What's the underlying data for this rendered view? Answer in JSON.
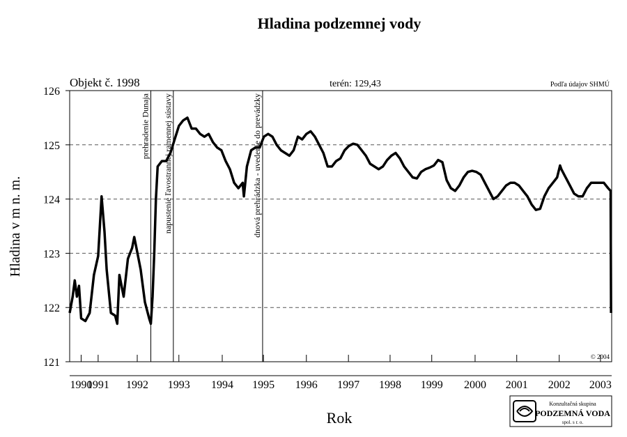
{
  "chart_data": {
    "type": "line",
    "title": "Hladina podzemnej vody",
    "xlabel": "Rok",
    "ylabel": "Hladina v m n. m.",
    "annotations": {
      "object": "Objekt č. 1998",
      "terrain": "terén: 129,43",
      "source": "Podľa údajov SHMÚ",
      "copyright": "© 2004"
    },
    "events": [
      {
        "x": 1992.84,
        "label": "prehradenie Dunaja"
      },
      {
        "x": 1993.37,
        "label": "napustenie ľavostrannej ramennej sústavy"
      },
      {
        "x": 1995.47,
        "label": "dnová prehrádzka - uvedenie do prevádzky"
      }
    ],
    "xlim": [
      1990.93,
      2003.684
    ],
    "ylim": [
      121,
      126
    ],
    "yticks": [
      121,
      122,
      123,
      124,
      125,
      126
    ],
    "xticks": [
      {
        "value": 1991.2,
        "label": "1990"
      },
      {
        "value": 1991.6,
        "label": "1991"
      },
      {
        "value": 1992.52,
        "label": "1992"
      },
      {
        "value": 1993.5,
        "label": "1993"
      },
      {
        "value": 1994.52,
        "label": "1994"
      },
      {
        "value": 1995.49,
        "label": "1995"
      },
      {
        "value": 1996.5,
        "label": "1996"
      },
      {
        "value": 1997.49,
        "label": "1997"
      },
      {
        "value": 1998.47,
        "label": "1998"
      },
      {
        "value": 1999.45,
        "label": "1999"
      },
      {
        "value": 2000.47,
        "label": "2000"
      },
      {
        "value": 2001.45,
        "label": "2001"
      },
      {
        "value": 2002.45,
        "label": "2002"
      },
      {
        "value": 2003.42,
        "label": "2003"
      }
    ],
    "grid": true,
    "color": "#000000",
    "x": [
      1990.93,
      1991.0,
      1991.05,
      1991.1,
      1991.15,
      1991.2,
      1991.3,
      1991.4,
      1991.5,
      1991.6,
      1991.68,
      1991.75,
      1991.8,
      1991.9,
      1992.0,
      1992.05,
      1992.1,
      1992.2,
      1992.3,
      1992.4,
      1992.45,
      1992.5,
      1992.6,
      1992.7,
      1992.8,
      1992.84,
      1992.88,
      1992.92,
      1992.96,
      1993.0,
      1993.1,
      1993.2,
      1993.3,
      1993.4,
      1993.5,
      1993.6,
      1993.7,
      1993.8,
      1993.9,
      1994.0,
      1994.1,
      1994.2,
      1994.3,
      1994.4,
      1994.5,
      1994.6,
      1994.7,
      1994.8,
      1994.9,
      1995.0,
      1995.03,
      1995.1,
      1995.2,
      1995.3,
      1995.4,
      1995.5,
      1995.6,
      1995.7,
      1995.8,
      1995.9,
      1996.0,
      1996.1,
      1996.2,
      1996.3,
      1996.4,
      1996.5,
      1996.6,
      1996.7,
      1996.8,
      1996.9,
      1997.0,
      1997.1,
      1997.2,
      1997.3,
      1997.4,
      1997.5,
      1997.6,
      1997.7,
      1997.8,
      1997.9,
      1998.0,
      1998.1,
      1998.2,
      1998.3,
      1998.4,
      1998.5,
      1998.6,
      1998.7,
      1998.8,
      1998.9,
      1999.0,
      1999.1,
      1999.2,
      1999.3,
      1999.4,
      1999.5,
      1999.6,
      1999.7,
      1999.8,
      1999.9,
      2000.0,
      2000.1,
      2000.2,
      2000.3,
      2000.4,
      2000.5,
      2000.6,
      2000.7,
      2000.8,
      2000.9,
      2001.0,
      2001.1,
      2001.2,
      2001.3,
      2001.4,
      2001.5,
      2001.6,
      2001.7,
      2001.8,
      2001.9,
      2002.0,
      2002.1,
      2002.2,
      2002.3,
      2002.4,
      2002.47,
      2002.5,
      2002.6,
      2002.7,
      2002.8,
      2002.9,
      2003.0,
      2003.1,
      2003.2,
      2003.3,
      2003.4,
      2003.5,
      2003.6,
      2003.66,
      2003.67
    ],
    "values": [
      121.9,
      122.2,
      122.5,
      122.2,
      122.4,
      121.8,
      121.75,
      121.9,
      122.6,
      122.95,
      124.05,
      123.4,
      122.7,
      121.9,
      121.85,
      121.7,
      122.6,
      122.2,
      122.9,
      123.1,
      123.3,
      123.1,
      122.7,
      122.1,
      121.8,
      121.7,
      122.2,
      123.0,
      124.0,
      124.6,
      124.7,
      124.7,
      124.85,
      125.1,
      125.35,
      125.45,
      125.5,
      125.3,
      125.3,
      125.2,
      125.15,
      125.2,
      125.05,
      124.95,
      124.9,
      124.7,
      124.55,
      124.3,
      124.2,
      124.3,
      124.05,
      124.6,
      124.9,
      124.95,
      124.95,
      125.15,
      125.2,
      125.15,
      125.0,
      124.9,
      124.85,
      124.8,
      124.9,
      125.15,
      125.1,
      125.2,
      125.25,
      125.15,
      125.0,
      124.85,
      124.6,
      124.6,
      124.7,
      124.75,
      124.9,
      124.98,
      125.02,
      125.0,
      124.9,
      124.8,
      124.65,
      124.6,
      124.55,
      124.6,
      124.72,
      124.8,
      124.85,
      124.75,
      124.6,
      124.5,
      124.4,
      124.38,
      124.5,
      124.55,
      124.58,
      124.62,
      124.72,
      124.68,
      124.35,
      124.2,
      124.15,
      124.25,
      124.4,
      124.5,
      124.52,
      124.5,
      124.45,
      124.3,
      124.15,
      124.0,
      124.05,
      124.15,
      124.25,
      124.3,
      124.3,
      124.25,
      124.15,
      124.05,
      123.9,
      123.8,
      123.82,
      124.05,
      124.2,
      124.3,
      124.4,
      124.62,
      124.55,
      124.4,
      124.25,
      124.1,
      124.05,
      124.05,
      124.2,
      124.3,
      124.3,
      124.3,
      124.3,
      124.2,
      124.15,
      121.9
    ]
  },
  "logo": {
    "line1": "Konzultačná skupina",
    "line2": "PODZEMNÁ VODA",
    "line3": "spol. s r. o."
  }
}
